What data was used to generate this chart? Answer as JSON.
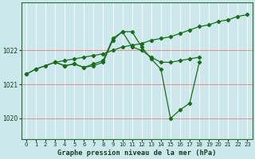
{
  "title": "Graphe pression niveau de la mer (hPa)",
  "background_color": "#cce8ec",
  "grid_color": "#ffffff",
  "grid_color_h": "#f0a0a0",
  "line_color": "#1a6e1a",
  "xlim": [
    -0.5,
    23.5
  ],
  "ylim": [
    1019.4,
    1023.4
  ],
  "yticks": [
    1020,
    1021,
    1022
  ],
  "xticks": [
    0,
    1,
    2,
    3,
    4,
    5,
    6,
    7,
    8,
    9,
    10,
    11,
    12,
    13,
    14,
    15,
    16,
    17,
    18,
    19,
    20,
    21,
    22,
    23
  ],
  "series": [
    {
      "x": [
        0,
        1,
        2,
        3,
        4,
        5,
        6,
        7,
        8,
        9,
        10,
        11,
        12,
        13,
        14,
        15,
        16,
        17,
        18,
        19,
        20,
        21,
        22,
        23
      ],
      "y": [
        1021.3,
        1021.45,
        1021.55,
        1021.65,
        1021.7,
        1021.75,
        1021.8,
        1021.85,
        1021.9,
        1022.0,
        1022.1,
        1022.15,
        1022.2,
        1022.3,
        1022.35,
        1022.4,
        1022.5,
        1022.6,
        1022.7,
        1022.75,
        1022.85,
        1022.9,
        1023.0,
        1023.05
      ]
    },
    {
      "x": [
        0,
        1,
        3,
        4,
        5,
        6,
        7,
        8,
        9,
        10,
        11,
        12,
        13,
        14,
        15,
        16,
        17,
        18
      ],
      "y": [
        1021.3,
        1021.45,
        1021.65,
        1021.55,
        1021.6,
        1021.5,
        1021.6,
        1021.7,
        1022.35,
        1022.55,
        1022.55,
        1022.1,
        1021.75,
        1021.45,
        1020.0,
        1020.25,
        1020.45,
        1021.65
      ]
    },
    {
      "x": [
        3,
        4,
        5,
        6,
        7,
        8,
        9,
        10,
        11,
        12,
        13,
        14,
        15,
        16,
        17,
        18
      ],
      "y": [
        1021.65,
        1021.55,
        1021.6,
        1021.5,
        1021.55,
        1021.65,
        1022.3,
        1022.55,
        1022.1,
        1022.0,
        1021.8,
        1021.65,
        1021.65,
        1021.7,
        1021.75,
        1021.8
      ]
    }
  ]
}
